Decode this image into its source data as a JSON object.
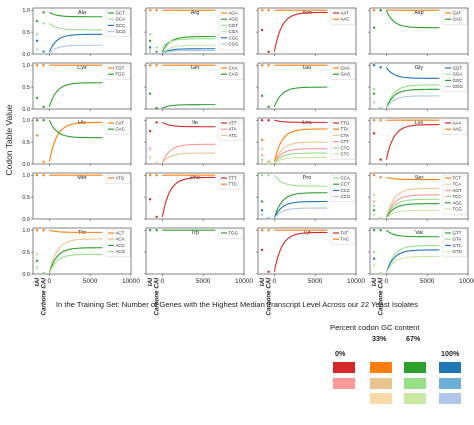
{
  "chart_data": {
    "type": "line",
    "ylabel": "Codon Table Value",
    "caption": "In the Training Set: Number of Genes with the Highest Median Transcript Level Across our 22 Yeast Isolates",
    "x_ticks": [
      "0",
      "5000",
      "10000"
    ],
    "y_ticks": [
      "0.0",
      "0.5",
      "1.0"
    ],
    "bottom_labels": [
      "tAI",
      "Carbone CAI"
    ],
    "xlim": [
      -2000,
      10000
    ],
    "ylim": [
      0,
      1.05
    ],
    "legend": {
      "title": "Percent codon GC content",
      "columns": [
        "0%",
        "33%",
        "67%",
        "100%"
      ],
      "rows": [
        [
          "#d62728",
          "#ff7f0e",
          "#2ca02c",
          "#1f77b4"
        ],
        [
          "#ff9896",
          "#e8c48f",
          "#98df8a",
          "#6baed6"
        ],
        [
          "",
          "#fdd9a8",
          "#c7e9a0",
          "#aec7e8"
        ]
      ]
    },
    "panels": [
      {
        "aa": "Ala",
        "codons": [
          {
            "name": "GCT",
            "color": "#2ca02c",
            "tai": 0.75,
            "cai": 0.95,
            "end": 0.85
          },
          {
            "name": "GCA",
            "color": "#98df8a",
            "tai": 0.45,
            "cai": 0.7,
            "end": 0.55
          },
          {
            "name": "GCC",
            "color": "#1f77b4",
            "tai": 0.3,
            "cai": 0.05,
            "end": 0.45
          },
          {
            "name": "GCG",
            "color": "#aec7e8",
            "tai": 0.1,
            "cai": 0.02,
            "end": 0.2
          }
        ]
      },
      {
        "aa": "Arg",
        "codons": [
          {
            "name": "AGA",
            "color": "#ff7f0e",
            "tai": 1.0,
            "cai": 1.0,
            "end": 1.0
          },
          {
            "name": "AGG",
            "color": "#2ca02c",
            "tai": 0.3,
            "cai": 0.05,
            "end": 0.4
          },
          {
            "name": "CGT",
            "color": "#98df8a",
            "tai": 0.45,
            "cai": 0.15,
            "end": 0.35
          },
          {
            "name": "CGA",
            "color": "#c7e9a0",
            "tai": 0.1,
            "cai": 0.02,
            "end": 0.2
          },
          {
            "name": "CGC",
            "color": "#1f77b4",
            "tai": 0.15,
            "cai": 0.02,
            "end": 0.12
          },
          {
            "name": "CGG",
            "color": "#aec7e8",
            "tai": 0.05,
            "cai": 0.02,
            "end": 0.08
          }
        ]
      },
      {
        "aa": "Asn",
        "codons": [
          {
            "name": "AAT",
            "color": "#d62728",
            "tai": 0.55,
            "cai": 0.05,
            "end": 0.95
          },
          {
            "name": "AAC",
            "color": "#ff7f0e",
            "tai": 1.0,
            "cai": 1.0,
            "end": 1.0
          }
        ]
      },
      {
        "aa": "Asp",
        "codons": [
          {
            "name": "GAT",
            "color": "#ff7f0e",
            "tai": 1.0,
            "cai": 1.0,
            "end": 1.0
          },
          {
            "name": "GAC",
            "color": "#2ca02c",
            "tai": 0.6,
            "cai": 1.0,
            "end": 0.6
          }
        ]
      },
      {
        "aa": "Cys",
        "codons": [
          {
            "name": "TGT",
            "color": "#ff7f0e",
            "tai": 1.0,
            "cai": 1.0,
            "end": 1.0
          },
          {
            "name": "TGC",
            "color": "#2ca02c",
            "tai": 0.25,
            "cai": 0.05,
            "end": 0.6
          }
        ]
      },
      {
        "aa": "Gln",
        "codons": [
          {
            "name": "CAA",
            "color": "#ff7f0e",
            "tai": 1.0,
            "cai": 1.0,
            "end": 1.0
          },
          {
            "name": "CAG",
            "color": "#2ca02c",
            "tai": 0.35,
            "cai": 0.02,
            "end": 0.1
          }
        ]
      },
      {
        "aa": "Glu",
        "codons": [
          {
            "name": "GAA",
            "color": "#ff7f0e",
            "tai": 1.0,
            "cai": 1.0,
            "end": 1.0
          },
          {
            "name": "GAG",
            "color": "#2ca02c",
            "tai": 0.3,
            "cai": 0.05,
            "end": 0.5
          }
        ]
      },
      {
        "aa": "Gly",
        "codons": [
          {
            "name": "GGT",
            "color": "#1f77b4",
            "tai": 1.0,
            "cai": 0.95,
            "end": 0.7
          },
          {
            "name": "GGA",
            "color": "#98df8a",
            "tai": 0.45,
            "cai": 0.02,
            "end": 0.55
          },
          {
            "name": "GGC",
            "color": "#2ca02c",
            "tai": 0.35,
            "cai": 0.02,
            "end": 0.45
          },
          {
            "name": "GGG",
            "color": "#aec7e8",
            "tai": 0.15,
            "cai": 0.02,
            "end": 0.3
          }
        ]
      },
      {
        "aa": "His",
        "codons": [
          {
            "name": "CAT",
            "color": "#ff7f0e",
            "tai": 0.65,
            "cai": 0.05,
            "end": 0.95
          },
          {
            "name": "CAC",
            "color": "#2ca02c",
            "tai": 1.0,
            "cai": 1.0,
            "end": 0.6
          }
        ]
      },
      {
        "aa": "Ile",
        "codons": [
          {
            "name": "ATT",
            "color": "#d62728",
            "tai": 0.75,
            "cai": 0.95,
            "end": 0.85
          },
          {
            "name": "ATA",
            "color": "#ff9896",
            "tai": 0.35,
            "cai": 0.02,
            "end": 0.45
          },
          {
            "name": "ATC",
            "color": "#e8c48f",
            "tai": 0.15,
            "cai": 0.02,
            "end": 0.25
          }
        ]
      },
      {
        "aa": "Leu",
        "codons": [
          {
            "name": "TTG",
            "color": "#d62728",
            "tai": 1.0,
            "cai": 1.0,
            "end": 0.95
          },
          {
            "name": "TTA",
            "color": "#ff7f0e",
            "tai": 0.55,
            "cai": 0.05,
            "end": 0.8
          },
          {
            "name": "CTA",
            "color": "#e8c48f",
            "tai": 0.35,
            "cai": 0.02,
            "end": 0.5
          },
          {
            "name": "CTT",
            "color": "#ff9896",
            "tai": 0.2,
            "cai": 0.02,
            "end": 0.35
          },
          {
            "name": "CTG",
            "color": "#98df8a",
            "tai": 0.1,
            "cai": 0.02,
            "end": 0.25
          },
          {
            "name": "CTC",
            "color": "#c7e9a0",
            "tai": 0.05,
            "cai": 0.02,
            "end": 0.15
          }
        ]
      },
      {
        "aa": "Lys",
        "codons": [
          {
            "name": "AAA",
            "color": "#d62728",
            "tai": 0.7,
            "cai": 0.1,
            "end": 0.9
          },
          {
            "name": "AAG",
            "color": "#ff7f0e",
            "tai": 1.0,
            "cai": 1.0,
            "end": 1.0
          }
        ]
      },
      {
        "aa": "Met",
        "codons": [
          {
            "name": "ATG",
            "color": "#ff7f0e",
            "tai": 1.0,
            "cai": 1.0,
            "end": 1.0
          }
        ]
      },
      {
        "aa": "Phe",
        "codons": [
          {
            "name": "TTT",
            "color": "#d62728",
            "tai": 0.45,
            "cai": 0.05,
            "end": 0.95
          },
          {
            "name": "TTC",
            "color": "#ff7f0e",
            "tai": 1.0,
            "cai": 1.0,
            "end": 1.0
          }
        ]
      },
      {
        "aa": "Pro",
        "codons": [
          {
            "name": "CCA",
            "color": "#98df8a",
            "tai": 1.0,
            "cai": 1.0,
            "end": 0.75
          },
          {
            "name": "CCT",
            "color": "#2ca02c",
            "tai": 0.4,
            "cai": 0.02,
            "end": 0.6
          },
          {
            "name": "CCC",
            "color": "#1f77b4",
            "tai": 0.2,
            "cai": 0.02,
            "end": 0.4
          },
          {
            "name": "CCG",
            "color": "#aec7e8",
            "tai": 0.1,
            "cai": 0.02,
            "end": 0.25
          }
        ]
      },
      {
        "aa": "Ser",
        "codons": [
          {
            "name": "TCT",
            "color": "#ff7f0e",
            "tai": 1.0,
            "cai": 0.95,
            "end": 0.9
          },
          {
            "name": "TCA",
            "color": "#e8c48f",
            "tai": 0.55,
            "cai": 0.02,
            "end": 0.7
          },
          {
            "name": "AGT",
            "color": "#ff9896",
            "tai": 0.4,
            "cai": 0.02,
            "end": 0.55
          },
          {
            "name": "TCC",
            "color": "#98df8a",
            "tai": 0.3,
            "cai": 0.02,
            "end": 0.45
          },
          {
            "name": "AGC",
            "color": "#2ca02c",
            "tai": 0.2,
            "cai": 0.02,
            "end": 0.35
          },
          {
            "name": "TCG",
            "color": "#c7e9a0",
            "tai": 0.1,
            "cai": 0.02,
            "end": 0.2
          }
        ]
      },
      {
        "aa": "Thr",
        "codons": [
          {
            "name": "ACT",
            "color": "#ff7f0e",
            "tai": 1.0,
            "cai": 1.0,
            "end": 0.95
          },
          {
            "name": "ACA",
            "color": "#e8c48f",
            "tai": 0.45,
            "cai": 0.02,
            "end": 0.8
          },
          {
            "name": "ACC",
            "color": "#2ca02c",
            "tai": 0.3,
            "cai": 0.02,
            "end": 0.6
          },
          {
            "name": "ACG",
            "color": "#98df8a",
            "tai": 0.15,
            "cai": 0.02,
            "end": 0.45
          }
        ]
      },
      {
        "aa": "Trp",
        "codons": [
          {
            "name": "TGG",
            "color": "#2ca02c",
            "tai": 1.0,
            "cai": 1.0,
            "end": 1.0
          }
        ]
      },
      {
        "aa": "Tyr",
        "codons": [
          {
            "name": "TAT",
            "color": "#d62728",
            "tai": 0.55,
            "cai": 0.05,
            "end": 0.95
          },
          {
            "name": "TAC",
            "color": "#ff7f0e",
            "tai": 1.0,
            "cai": 1.0,
            "end": 1.0
          }
        ]
      },
      {
        "aa": "Val",
        "codons": [
          {
            "name": "GTT",
            "color": "#2ca02c",
            "tai": 1.0,
            "cai": 1.0,
            "end": 0.85
          },
          {
            "name": "GTA",
            "color": "#98df8a",
            "tai": 0.5,
            "cai": 0.02,
            "end": 0.65
          },
          {
            "name": "GTC",
            "color": "#1f77b4",
            "tai": 0.35,
            "cai": 0.02,
            "end": 0.55
          },
          {
            "name": "GTG",
            "color": "#c7e9a0",
            "tai": 0.2,
            "cai": 0.02,
            "end": 0.4
          }
        ]
      }
    ]
  }
}
